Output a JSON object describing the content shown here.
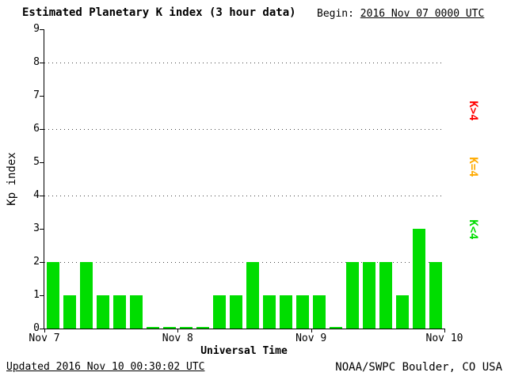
{
  "header": {
    "begin_label": "Begin:",
    "begin_value": "2016 Nov 07 0000 UTC"
  },
  "footer": {
    "updated": "Updated 2016 Nov 10 00:30:02 UTC",
    "source": "NOAA/SWPC Boulder, CO USA"
  },
  "chart_data": {
    "type": "bar",
    "title": "Estimated Planetary K index (3 hour data)",
    "xlabel": "Universal Time",
    "ylabel": "Kp index",
    "ylim": [
      0,
      9
    ],
    "yticks": [
      0,
      1,
      2,
      3,
      4,
      5,
      6,
      7,
      8,
      9
    ],
    "grid_y": [
      2,
      4,
      6,
      8
    ],
    "grid_style": "dotted",
    "xticklabels": [
      "Nov 7",
      "Nov 8",
      "Nov 9",
      "Nov 10"
    ],
    "bars_per_day": 8,
    "values": [
      2,
      1,
      2,
      1,
      1,
      1,
      0,
      0,
      0,
      0,
      1,
      1,
      2,
      1,
      1,
      1,
      1,
      0,
      2,
      2,
      2,
      1,
      3,
      2
    ],
    "legend": [
      {
        "label": "K>4",
        "color": "#ff0000",
        "position": "right-top"
      },
      {
        "label": "K=4",
        "color": "#ffaa00",
        "position": "right-middle"
      },
      {
        "label": "K<4",
        "color": "#00dd00",
        "position": "right-bottom"
      }
    ]
  }
}
